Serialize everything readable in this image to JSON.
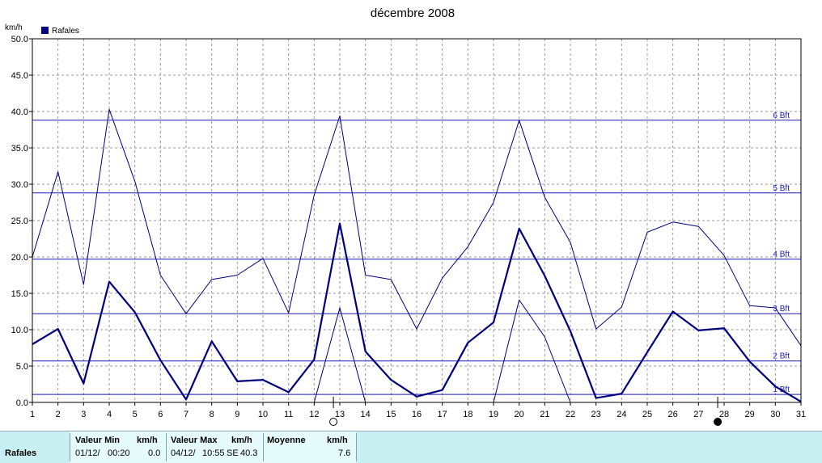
{
  "chart_data": {
    "type": "line",
    "title": "décembre 2008",
    "ylabel": "km/h",
    "ylim": [
      0,
      50
    ],
    "yticks": [
      "0.0",
      "5.0",
      "10.0",
      "15.0",
      "20.0",
      "25.0",
      "30.0",
      "35.0",
      "40.0",
      "45.0",
      "50.0"
    ],
    "x": [
      1,
      2,
      3,
      4,
      5,
      6,
      7,
      8,
      9,
      10,
      11,
      12,
      13,
      14,
      15,
      16,
      17,
      18,
      19,
      20,
      21,
      22,
      23,
      24,
      25,
      26,
      27,
      28,
      29,
      30,
      31
    ],
    "grid": true,
    "legend": [
      {
        "name": "Rafales",
        "color": "#00007f"
      }
    ],
    "series": [
      {
        "name": "Rafales",
        "role": "mean",
        "color": "#00007f",
        "values": [
          8.0,
          10.1,
          2.6,
          16.6,
          12.4,
          5.8,
          0.4,
          8.4,
          2.9,
          3.1,
          1.4,
          5.9,
          24.6,
          7.0,
          3.1,
          0.8,
          1.7,
          8.2,
          11.0,
          23.9,
          17.4,
          9.8,
          0.6,
          1.2,
          6.9,
          12.5,
          9.9,
          10.2,
          5.6,
          2.2,
          0.1
        ]
      },
      {
        "role": "max",
        "color": "#00007f",
        "values": [
          20.0,
          31.7,
          16.2,
          40.3,
          30.4,
          17.5,
          12.2,
          16.9,
          17.5,
          19.8,
          12.3,
          28.5,
          39.4,
          17.5,
          16.9,
          10.1,
          17.1,
          21.4,
          27.5,
          38.8,
          28.2,
          22.0,
          10.1,
          13.1,
          23.4,
          24.8,
          24.2,
          20.2,
          13.3,
          13.0,
          7.8
        ]
      },
      {
        "role": "min",
        "color": "#00007f",
        "values": [
          null,
          null,
          null,
          null,
          null,
          null,
          null,
          null,
          null,
          null,
          null,
          0.0,
          13.0,
          0.0,
          null,
          null,
          null,
          null,
          0.0,
          14.1,
          9.0,
          0.0,
          null,
          null,
          null,
          null,
          null,
          null,
          null,
          null,
          null
        ]
      }
    ],
    "beaufort": [
      {
        "label": "1 Bft",
        "value": 1.1
      },
      {
        "label": "2 Bft",
        "value": 5.7
      },
      {
        "label": "3 Bft",
        "value": 12.2
      },
      {
        "label": "4 Bft",
        "value": 19.7
      },
      {
        "label": "5 Bft",
        "value": 28.8
      },
      {
        "label": "6 Bft",
        "value": 38.8
      }
    ],
    "moon_phases": [
      {
        "day": 12.75,
        "phase": "full"
      },
      {
        "day": 27.75,
        "phase": "new"
      }
    ]
  },
  "stats": {
    "row_label": "Rafales",
    "min_header": "Valeur Min",
    "min_unit": "km/h",
    "min_date": "01/12/",
    "min_time": "00:20",
    "min_value": "0.0",
    "max_header": "Valeur Max",
    "max_unit": "km/h",
    "max_date": "04/12/",
    "max_time": "10:55",
    "max_dir": "SE",
    "max_value": "40.3",
    "avg_header": "Moyenne",
    "avg_unit": "km/h",
    "avg_value": "7.6"
  }
}
